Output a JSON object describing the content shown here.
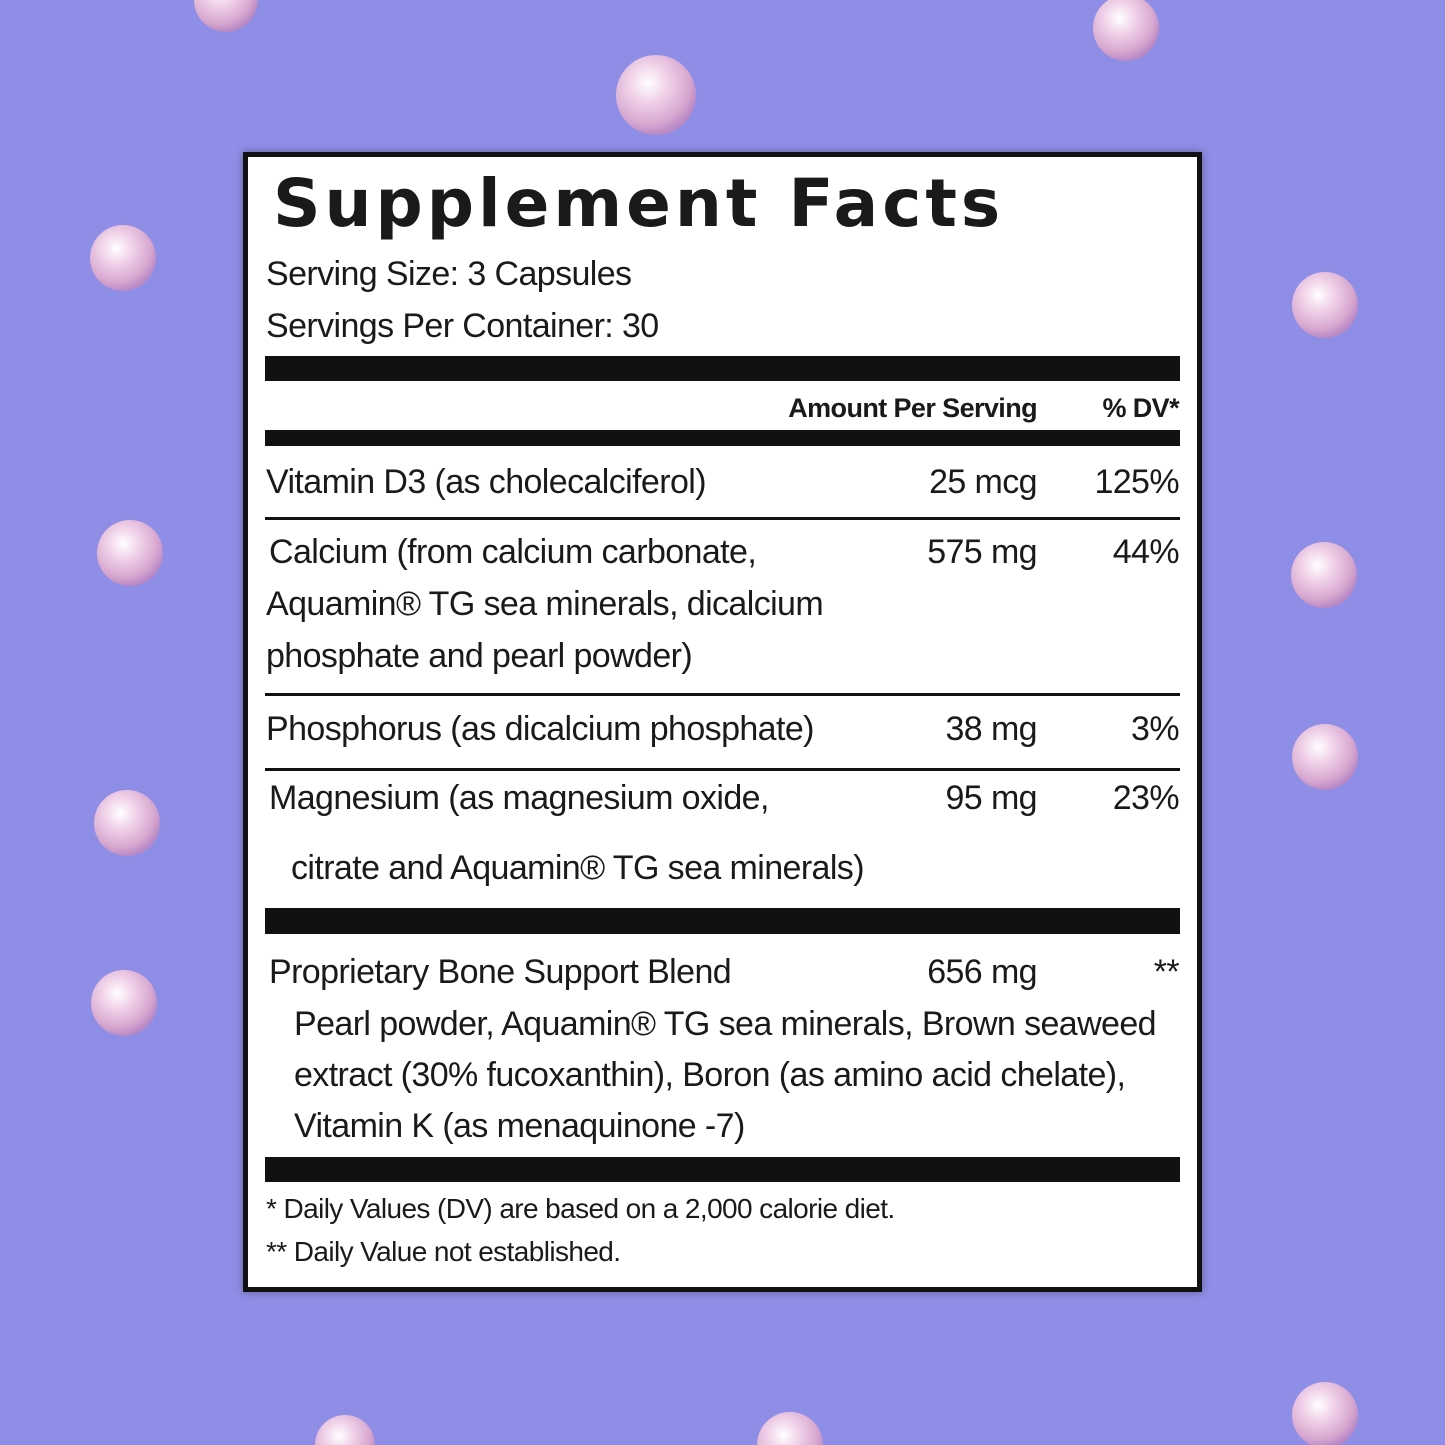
{
  "title": "Supplement Facts",
  "serving_size": "Serving Size: 3 Capsules",
  "servings_per_container": "Servings Per Container: 30",
  "columns": {
    "amount": "Amount Per Serving",
    "dv": "% DV*"
  },
  "rows": [
    {
      "name_lines": [
        "Vitamin D3 (as cholecalciferol)"
      ],
      "amount": "25 mcg",
      "dv": "125%"
    },
    {
      "name_lines": [
        "Calcium (from calcium carbonate,",
        "Aquamin® TG sea minerals, dicalcium",
        "phosphate and pearl powder)"
      ],
      "amount": "575 mg",
      "dv": "44%"
    },
    {
      "name_lines": [
        "Phosphorus (as dicalcium phosphate)"
      ],
      "amount": "38 mg",
      "dv": "3%"
    },
    {
      "name_lines": [
        "Magnesium (as magnesium oxide,",
        "citrate and Aquamin® TG sea minerals)"
      ],
      "amount": "95 mg",
      "dv": "23%"
    }
  ],
  "blend": {
    "name": "Proprietary Bone Support Blend",
    "amount": "656 mg",
    "dv": "**",
    "ingredient_lines": [
      "Pearl powder, Aquamin® TG sea minerals, Brown seaweed",
      "extract (30% fucoxanthin), Boron (as amino acid chelate),",
      "Vitamin K (as menaquinone -7)"
    ]
  },
  "footnotes": [
    "* Daily Values (DV) are based on a 2,000 calorie diet.",
    "** Daily Value not established."
  ]
}
